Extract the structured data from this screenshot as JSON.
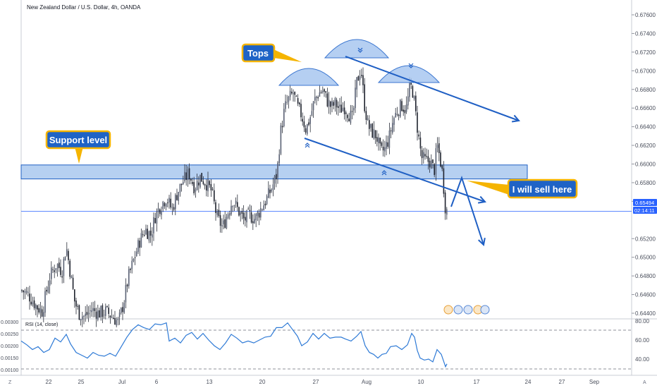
{
  "chart_data": {
    "type": "line",
    "title": "New Zealand Dollar / U.S. Dollar, 4h, OANDA",
    "price_axis": {
      "ticks": [
        "0.67600",
        "0.67400",
        "0.67200",
        "0.67000",
        "0.66800",
        "0.66600",
        "0.66400",
        "0.66200",
        "0.66000",
        "0.65800",
        "0.65600",
        "0.65200",
        "0.65000",
        "0.64800",
        "0.64600",
        "0.64400"
      ],
      "tick_values": [
        0.676,
        0.674,
        0.672,
        0.67,
        0.668,
        0.666,
        0.664,
        0.662,
        0.66,
        0.658,
        0.656,
        0.652,
        0.65,
        0.648,
        0.646,
        0.644
      ],
      "ylim": [
        0.6427,
        0.6778
      ],
      "last_price": "0.65494",
      "last_price_value": 0.65494,
      "countdown": "02:14:11"
    },
    "time_axis": {
      "labels": [
        "22",
        "25",
        "Jul",
        "6",
        "13",
        "20",
        "27",
        "Aug",
        "10",
        "17",
        "24",
        "27",
        "Sep"
      ],
      "positions": [
        69,
        115,
        173,
        222,
        297,
        372,
        448,
        520,
        597,
        676,
        749,
        797,
        843
      ],
      "corner_left": "Z",
      "corner_right": "A"
    },
    "price_path": [
      [
        30,
        0.6465
      ],
      [
        40,
        0.646
      ],
      [
        52,
        0.6447
      ],
      [
        60,
        0.6442
      ],
      [
        70,
        0.6478
      ],
      [
        80,
        0.6493
      ],
      [
        88,
        0.6485
      ],
      [
        94,
        0.6512
      ],
      [
        100,
        0.6482
      ],
      [
        106,
        0.6452
      ],
      [
        112,
        0.644
      ],
      [
        120,
        0.6436
      ],
      [
        130,
        0.6444
      ],
      [
        140,
        0.644
      ],
      [
        150,
        0.6442
      ],
      [
        160,
        0.6436
      ],
      [
        168,
        0.643
      ],
      [
        175,
        0.645
      ],
      [
        182,
        0.6478
      ],
      [
        190,
        0.6498
      ],
      [
        198,
        0.6517
      ],
      [
        206,
        0.653
      ],
      [
        214,
        0.6524
      ],
      [
        220,
        0.6544
      ],
      [
        228,
        0.6556
      ],
      [
        236,
        0.6564
      ],
      [
        244,
        0.6551
      ],
      [
        252,
        0.657
      ],
      [
        260,
        0.6582
      ],
      [
        268,
        0.659
      ],
      [
        276,
        0.6575
      ],
      [
        284,
        0.6586
      ],
      [
        292,
        0.658
      ],
      [
        300,
        0.6571
      ],
      [
        308,
        0.6542
      ],
      [
        316,
        0.6532
      ],
      [
        322,
        0.6545
      ],
      [
        330,
        0.6562
      ],
      [
        338,
        0.655
      ],
      [
        346,
        0.654
      ],
      [
        354,
        0.6545
      ],
      [
        362,
        0.6541
      ],
      [
        370,
        0.6552
      ],
      [
        378,
        0.6562
      ],
      [
        386,
        0.6575
      ],
      [
        393,
        0.659
      ],
      [
        398,
        0.6634
      ],
      [
        404,
        0.666
      ],
      [
        410,
        0.667
      ],
      [
        416,
        0.6676
      ],
      [
        422,
        0.6661
      ],
      [
        428,
        0.6652
      ],
      [
        434,
        0.6637
      ],
      [
        440,
        0.665
      ],
      [
        446,
        0.6668
      ],
      [
        452,
        0.6676
      ],
      [
        458,
        0.6679
      ],
      [
        464,
        0.6668
      ],
      [
        470,
        0.6661
      ],
      [
        476,
        0.6665
      ],
      [
        482,
        0.6658
      ],
      [
        488,
        0.6662
      ],
      [
        494,
        0.6655
      ],
      [
        500,
        0.6648
      ],
      [
        506,
        0.6687
      ],
      [
        512,
        0.6703
      ],
      [
        517,
        0.6664
      ],
      [
        522,
        0.6641
      ],
      [
        528,
        0.6634
      ],
      [
        534,
        0.663
      ],
      [
        540,
        0.6612
      ],
      [
        546,
        0.6616
      ],
      [
        552,
        0.6628
      ],
      [
        558,
        0.6648
      ],
      [
        564,
        0.6658
      ],
      [
        570,
        0.6663
      ],
      [
        576,
        0.6658
      ],
      [
        582,
        0.6684
      ],
      [
        586,
        0.6677
      ],
      [
        590,
        0.6651
      ],
      [
        594,
        0.6628
      ],
      [
        598,
        0.6607
      ],
      [
        604,
        0.6603
      ],
      [
        610,
        0.6603
      ],
      [
        616,
        0.6593
      ],
      [
        620,
        0.662
      ],
      [
        624,
        0.6607
      ],
      [
        628,
        0.6588
      ],
      [
        632,
        0.6551
      ],
      [
        636,
        0.6549
      ]
    ],
    "support_zone": [
      0.6584,
      0.6599
    ],
    "annotations": {
      "tops": "Tops",
      "support": "Support level",
      "sell": "I will sell here"
    },
    "rsi": {
      "label": "RSI (14, close)",
      "ticks": [
        "80.00",
        "60.00",
        "40.00"
      ],
      "tick_values": [
        80,
        60,
        40
      ],
      "bands": [
        70,
        30
      ],
      "ylim": [
        28,
        82
      ],
      "left_ticks": [
        "0.00300",
        "0.00250",
        "0.00200",
        "0.00150",
        "0.00100"
      ],
      "values": [
        [
          30,
          59
        ],
        [
          38,
          55
        ],
        [
          46,
          50
        ],
        [
          54,
          53
        ],
        [
          62,
          47
        ],
        [
          70,
          50
        ],
        [
          78,
          62
        ],
        [
          86,
          58
        ],
        [
          94,
          66
        ],
        [
          100,
          56
        ],
        [
          108,
          47
        ],
        [
          116,
          44
        ],
        [
          124,
          41
        ],
        [
          132,
          47
        ],
        [
          140,
          44
        ],
        [
          148,
          43
        ],
        [
          156,
          46
        ],
        [
          164,
          43
        ],
        [
          172,
          53
        ],
        [
          180,
          63
        ],
        [
          188,
          71
        ],
        [
          196,
          76
        ],
        [
          204,
          73
        ],
        [
          212,
          71
        ],
        [
          220,
          77
        ],
        [
          228,
          76
        ],
        [
          236,
          78
        ],
        [
          240,
          59
        ],
        [
          248,
          62
        ],
        [
          256,
          57
        ],
        [
          264,
          65
        ],
        [
          272,
          68
        ],
        [
          280,
          61
        ],
        [
          288,
          67
        ],
        [
          296,
          60
        ],
        [
          304,
          54
        ],
        [
          312,
          50
        ],
        [
          320,
          57
        ],
        [
          328,
          66
        ],
        [
          336,
          62
        ],
        [
          344,
          57
        ],
        [
          352,
          59
        ],
        [
          360,
          57
        ],
        [
          368,
          60
        ],
        [
          376,
          63
        ],
        [
          384,
          64
        ],
        [
          392,
          73
        ],
        [
          400,
          73
        ],
        [
          408,
          78
        ],
        [
          414,
          72
        ],
        [
          422,
          64
        ],
        [
          428,
          54
        ],
        [
          436,
          58
        ],
        [
          444,
          67
        ],
        [
          452,
          61
        ],
        [
          460,
          67
        ],
        [
          468,
          62
        ],
        [
          476,
          63
        ],
        [
          484,
          63
        ],
        [
          490,
          61
        ],
        [
          498,
          59
        ],
        [
          506,
          64
        ],
        [
          512,
          69
        ],
        [
          518,
          54
        ],
        [
          524,
          47
        ],
        [
          530,
          45
        ],
        [
          536,
          41
        ],
        [
          542,
          45
        ],
        [
          548,
          46
        ],
        [
          554,
          53
        ],
        [
          562,
          54
        ],
        [
          570,
          50
        ],
        [
          578,
          55
        ],
        [
          584,
          67
        ],
        [
          588,
          63
        ],
        [
          592,
          49
        ],
        [
          596,
          41
        ],
        [
          602,
          39
        ],
        [
          608,
          40
        ],
        [
          614,
          37
        ],
        [
          620,
          50
        ],
        [
          626,
          45
        ],
        [
          632,
          32
        ],
        [
          634,
          35
        ]
      ]
    }
  }
}
